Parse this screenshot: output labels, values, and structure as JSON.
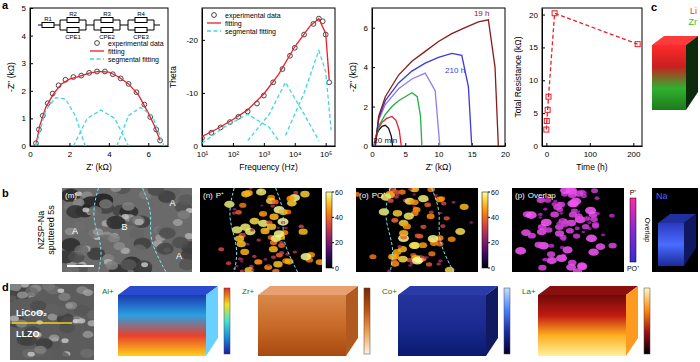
{
  "panel_labels": [
    "a",
    "b",
    "c",
    "d"
  ],
  "chart_data": [
    {
      "type": "line",
      "x_label": "Z' (kΩ)",
      "y_label": "-Z'' (kΩ)",
      "xlim": [
        0,
        7
      ],
      "ylim": [
        0,
        5
      ],
      "xticks": [
        0,
        2,
        4,
        6
      ],
      "yticks": [
        0,
        1,
        2,
        3,
        4,
        5
      ],
      "legend": "upper right",
      "inset": [
        "R1",
        "R2",
        "CPE1",
        "R3",
        "CPE2",
        "R4",
        "CPE3"
      ],
      "series": [
        {
          "name": "experimental data",
          "type": "scatter",
          "marker": "circle-open",
          "color": "#333333",
          "x": [
            0.3,
            0.45,
            0.65,
            0.9,
            1.15,
            1.45,
            1.8,
            2.2,
            2.6,
            3.0,
            3.4,
            3.8,
            4.2,
            4.6,
            5.0,
            5.4,
            5.8,
            6.1,
            6.4,
            6.6
          ],
          "values": [
            0.1,
            0.6,
            1.1,
            1.55,
            1.9,
            2.2,
            2.4,
            2.5,
            2.55,
            2.65,
            2.7,
            2.7,
            2.6,
            2.45,
            2.25,
            1.95,
            1.5,
            1.05,
            0.6,
            0.2
          ]
        },
        {
          "name": "fitting",
          "type": "line",
          "color": "#e8202a",
          "x": [
            0.3,
            0.5,
            0.8,
            1.2,
            1.6,
            2.0,
            2.5,
            3.0,
            3.5,
            4.0,
            4.5,
            5.0,
            5.5,
            6.0,
            6.3,
            6.6
          ],
          "values": [
            0.05,
            0.75,
            1.4,
            1.9,
            2.25,
            2.42,
            2.52,
            2.64,
            2.7,
            2.68,
            2.5,
            2.25,
            1.85,
            1.2,
            0.75,
            0.2
          ]
        },
        {
          "name": "segmental fitting",
          "type": "line",
          "line_style": "dashed",
          "color": "#3fd8e0",
          "x": [
            0.3,
            0.8,
            1.3,
            1.8,
            2.3,
            2.8,
            null,
            2.2,
            2.9,
            3.6,
            4.3,
            5.0,
            null,
            4.4,
            5.0,
            5.6,
            6.2,
            6.8
          ],
          "values": [
            0,
            1.3,
            1.75,
            1.7,
            1.1,
            0,
            null,
            0,
            1.0,
            1.3,
            1.0,
            0,
            null,
            0,
            1.1,
            1.4,
            1.1,
            0
          ]
        }
      ]
    },
    {
      "type": "line",
      "log": "x",
      "x_label": "Frequency (Hz)",
      "y_label": "Theta",
      "xlim": [
        10,
        200000
      ],
      "ylim": [
        0,
        -26
      ],
      "xticks": [
        {
          "value": 10,
          "label": "10¹"
        },
        {
          "value": 100,
          "label": "10²"
        },
        {
          "value": 1000,
          "label": "10³"
        },
        {
          "value": 10000,
          "label": "10⁴"
        },
        {
          "value": 100000,
          "label": "10⁵"
        }
      ],
      "yticks": [
        0,
        -10,
        -20
      ],
      "legend": "upper left",
      "series": [
        {
          "name": "experimental data",
          "type": "scatter",
          "marker": "circle-open",
          "color": "#333333",
          "x": [
            10,
            20,
            40,
            80,
            150,
            300,
            600,
            1000,
            2000,
            4000,
            7000,
            10000,
            20000,
            40000,
            60000,
            80000,
            100000,
            130000
          ],
          "values": [
            -1.5,
            -2.5,
            -3.5,
            -4.5,
            -5.5,
            -6.5,
            -8,
            -9.5,
            -12,
            -14.5,
            -17,
            -18.5,
            -21,
            -23,
            -24,
            -23.5,
            -21,
            -12
          ]
        },
        {
          "name": "fitting",
          "type": "line",
          "color": "#e8202a",
          "x": [
            10,
            30,
            100,
            300,
            1000,
            3000,
            10000,
            30000,
            60000,
            100000,
            130000
          ],
          "values": [
            -1.8,
            -3.2,
            -5,
            -6.8,
            -9.8,
            -13.5,
            -18.7,
            -22.5,
            -24,
            -21.2,
            -12.5
          ]
        },
        {
          "name": "segmental fitting",
          "type": "line",
          "line_style": "dashed",
          "color": "#3fd8e0",
          "x": [
            10,
            50,
            300,
            1500,
            3000,
            null,
            300,
            1500,
            5000,
            20000,
            60000,
            null,
            5000,
            20000,
            60000,
            100000,
            150000
          ],
          "values": [
            -0.5,
            -3.5,
            -6,
            -3.5,
            -1,
            null,
            -1,
            -6,
            -12,
            -6,
            -1,
            null,
            -2,
            -10,
            -18,
            -14,
            -3
          ]
        }
      ]
    },
    {
      "type": "line",
      "x_label": "Z' (kΩ)",
      "y_label": "-Z'' (kΩ)",
      "xlim": [
        0,
        20
      ],
      "ylim": [
        0,
        7
      ],
      "xticks": [
        0,
        5,
        10,
        15,
        20
      ],
      "yticks": [
        0,
        2,
        4,
        6
      ],
      "series": [
        {
          "color": "#111111",
          "x": [
            0.3,
            0.6,
            1,
            1.5,
            2,
            2.5,
            2.9,
            3.1
          ],
          "values": [
            0,
            0.5,
            0.8,
            1.0,
            1.05,
            0.9,
            0.5,
            0
          ]
        },
        {
          "color": "#e8202a",
          "x": [
            0.3,
            0.8,
            1.5,
            2.2,
            3,
            3.6,
            4.1,
            4.4
          ],
          "values": [
            0,
            0.8,
            1.2,
            1.4,
            1.5,
            1.3,
            0.8,
            0
          ]
        },
        {
          "color": "#20b040",
          "x": [
            0.4,
            1,
            2,
            3,
            4,
            5,
            6,
            6.8,
            7.3,
            7.5
          ],
          "values": [
            0,
            1,
            1.6,
            2.0,
            2.3,
            2.5,
            2.7,
            2.5,
            1.5,
            0
          ]
        },
        {
          "color": "#8a7ff0",
          "x": [
            0.4,
            1,
            2,
            4,
            6,
            8,
            9.5,
            10.2
          ],
          "values": [
            0,
            1.3,
            2.1,
            2.9,
            3.4,
            3.7,
            2.8,
            0
          ]
        },
        {
          "color": "#3b3bd9",
          "x": [
            0.5,
            1,
            2,
            4,
            6,
            8,
            10,
            12,
            13.5,
            14.5,
            15
          ],
          "values": [
            0,
            1.4,
            2.3,
            3.2,
            3.8,
            4.2,
            4.5,
            4.7,
            4.6,
            3,
            0
          ]
        },
        {
          "color": "#8b1a1a",
          "x": [
            0.5,
            1,
            2,
            4,
            6,
            8,
            10,
            12,
            14,
            16,
            17.5,
            18.5,
            19
          ],
          "values": [
            0,
            1.5,
            2.5,
            3.6,
            4.3,
            4.8,
            5.3,
            5.7,
            6.0,
            6.3,
            6.4,
            4,
            0
          ]
        }
      ],
      "annotations": [
        {
          "text": "20 min",
          "x": 2.0,
          "y": 0.15,
          "color": "#111111"
        },
        {
          "text": "19 h",
          "x": 16.5,
          "y": 6.6,
          "color": "#8b1a1a"
        },
        {
          "text": "210 h",
          "x": 12.5,
          "y": 3.7,
          "color": "#3b3bd9"
        }
      ]
    },
    {
      "type": "line",
      "marker": "square-open",
      "line_style": "dashed",
      "color": "#e8202a",
      "x_label": "Time (h)",
      "y_label": "Total Resistance (kΩ)",
      "xlim": [
        -10,
        220
      ],
      "ylim": [
        0,
        21
      ],
      "xticks": [
        0,
        100,
        200
      ],
      "yticks": [
        0,
        5,
        10,
        15,
        20
      ],
      "x": [
        0,
        1,
        3,
        5,
        19,
        210
      ],
      "values": [
        2.5,
        3.8,
        5.5,
        7.5,
        20.2,
        15.5
      ]
    }
  ],
  "panel_b": {
    "row_label": [
      "NZSP-Na",
      "sputtered 5s"
    ],
    "images": [
      {
        "label": "(m)",
        "regions": [
          "A",
          "B",
          "A",
          "A"
        ]
      },
      {
        "label": "(n)",
        "species": "P⁺"
      },
      {
        "label": "(o)",
        "species": "PO⁺"
      },
      {
        "label": "(p)",
        "species": "Overlap"
      }
    ],
    "colorbar": {
      "range": [
        0,
        60
      ],
      "ticks": [
        0,
        20,
        40,
        60
      ]
    },
    "overlap_bar": {
      "top": "P⁺",
      "middle": "Overlap",
      "bottom": "PO⁺"
    }
  },
  "panel_c": {
    "top_labels": [
      {
        "text": "Li",
        "color": "#ff3030"
      },
      {
        "text": "Zr",
        "color": "#30c030"
      }
    ],
    "bottom_labels": [
      {
        "text": "Na",
        "color": "#4a6cff"
      }
    ]
  },
  "panel_d": {
    "sem_labels": [
      "LiCoO₂",
      "LLZO"
    ],
    "maps": [
      "Al+",
      "Zr+",
      "Co+",
      "La+"
    ]
  }
}
